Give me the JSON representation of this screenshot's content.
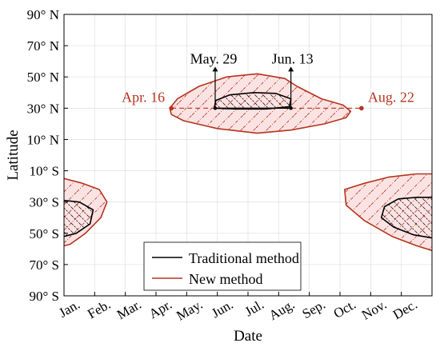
{
  "colors": {
    "traditional": "#000000",
    "new": "#b5341f",
    "new_fill": "#fbe3e3",
    "axis": "#000000",
    "annotation": "#b5341f"
  },
  "chart_data": {
    "type": "area",
    "xlabel": "Date",
    "ylabel": "Latitude",
    "x_categories": [
      "Jan.",
      "Feb.",
      "Mar.",
      "Apr.",
      "May.",
      "Jun.",
      "Jul.",
      "Aug.",
      "Sep.",
      "Oct.",
      "Nov.",
      "Dec."
    ],
    "xlim_months": [
      0,
      12
    ],
    "ylim_degrees": [
      -90,
      90
    ],
    "yticks": [
      {
        "value": 90,
        "label": "90° N"
      },
      {
        "value": 70,
        "label": "70° N"
      },
      {
        "value": 50,
        "label": "50° N"
      },
      {
        "value": 30,
        "label": "30° N"
      },
      {
        "value": 10,
        "label": "10° N"
      },
      {
        "value": -10,
        "label": "10° S"
      },
      {
        "value": -30,
        "label": "30° S"
      },
      {
        "value": -50,
        "label": "50° S"
      },
      {
        "value": -70,
        "label": "70° S"
      },
      {
        "value": -90,
        "label": "90° S"
      }
    ],
    "grid": true,
    "legend_position": "bottom-center",
    "series": [
      {
        "name": "Traditional method",
        "regions": [
          {
            "id": "traditional-north",
            "points": [
              [
                4.9,
                30
              ],
              [
                4.95,
                35
              ],
              [
                5.4,
                38.5
              ],
              [
                6.2,
                40
              ],
              [
                6.9,
                39.5
              ],
              [
                7.4,
                36
              ],
              [
                7.35,
                31
              ],
              [
                6.6,
                29.5
              ],
              [
                5.6,
                29.5
              ],
              [
                4.9,
                30
              ]
            ]
          },
          {
            "id": "traditional-south-jan",
            "points": [
              [
                0,
                -29
              ],
              [
                0.5,
                -30
              ],
              [
                0.95,
                -35
              ],
              [
                0.85,
                -44
              ],
              [
                0.4,
                -50
              ],
              [
                0,
                -52
              ]
            ]
          },
          {
            "id": "traditional-south-dec",
            "points": [
              [
                12,
                -27
              ],
              [
                11.5,
                -27
              ],
              [
                10.9,
                -28
              ],
              [
                10.45,
                -33
              ],
              [
                10.35,
                -40
              ],
              [
                10.75,
                -46
              ],
              [
                11.4,
                -51
              ],
              [
                12,
                -53
              ]
            ]
          }
        ]
      },
      {
        "name": "New method",
        "regions": [
          {
            "id": "new-north",
            "points": [
              [
                3.45,
                30
              ],
              [
                3.5,
                26
              ],
              [
                3.9,
                22
              ],
              [
                5.0,
                17
              ],
              [
                6.3,
                14
              ],
              [
                7.4,
                16
              ],
              [
                8.5,
                20
              ],
              [
                9.2,
                24
              ],
              [
                9.35,
                28
              ],
              [
                9.1,
                32
              ],
              [
                8.4,
                36
              ],
              [
                7.6,
                44
              ],
              [
                7.2,
                49
              ],
              [
                6.3,
                52
              ],
              [
                5.3,
                50
              ],
              [
                4.4,
                44
              ],
              [
                3.7,
                36
              ],
              [
                3.45,
                30
              ]
            ]
          },
          {
            "id": "new-south-jan",
            "points": [
              [
                0,
                -15
              ],
              [
                0.6,
                -18
              ],
              [
                1.15,
                -22
              ],
              [
                1.4,
                -30
              ],
              [
                1.2,
                -40
              ],
              [
                0.7,
                -50
              ],
              [
                0.2,
                -57
              ],
              [
                0,
                -58
              ]
            ]
          },
          {
            "id": "new-south-dec",
            "points": [
              [
                12,
                -12
              ],
              [
                11.5,
                -12
              ],
              [
                10.6,
                -14
              ],
              [
                9.8,
                -18
              ],
              [
                9.15,
                -22
              ],
              [
                9.2,
                -32
              ],
              [
                9.8,
                -42
              ],
              [
                10.7,
                -52
              ],
              [
                11.5,
                -58
              ],
              [
                12,
                -61
              ]
            ]
          }
        ]
      }
    ],
    "annotations": [
      {
        "id": "apr16",
        "text": "Apr. 16",
        "x": 3.5,
        "y": 30,
        "color": "new"
      },
      {
        "id": "aug22",
        "text": "Aug. 22",
        "x": 9.7,
        "y": 30,
        "color": "new"
      },
      {
        "id": "may29",
        "text": "May. 29",
        "x": 4.93,
        "y": 30,
        "color": "traditional"
      },
      {
        "id": "jun13",
        "text": "Jun. 13",
        "x": 7.4,
        "y": 30,
        "color": "traditional"
      }
    ]
  }
}
